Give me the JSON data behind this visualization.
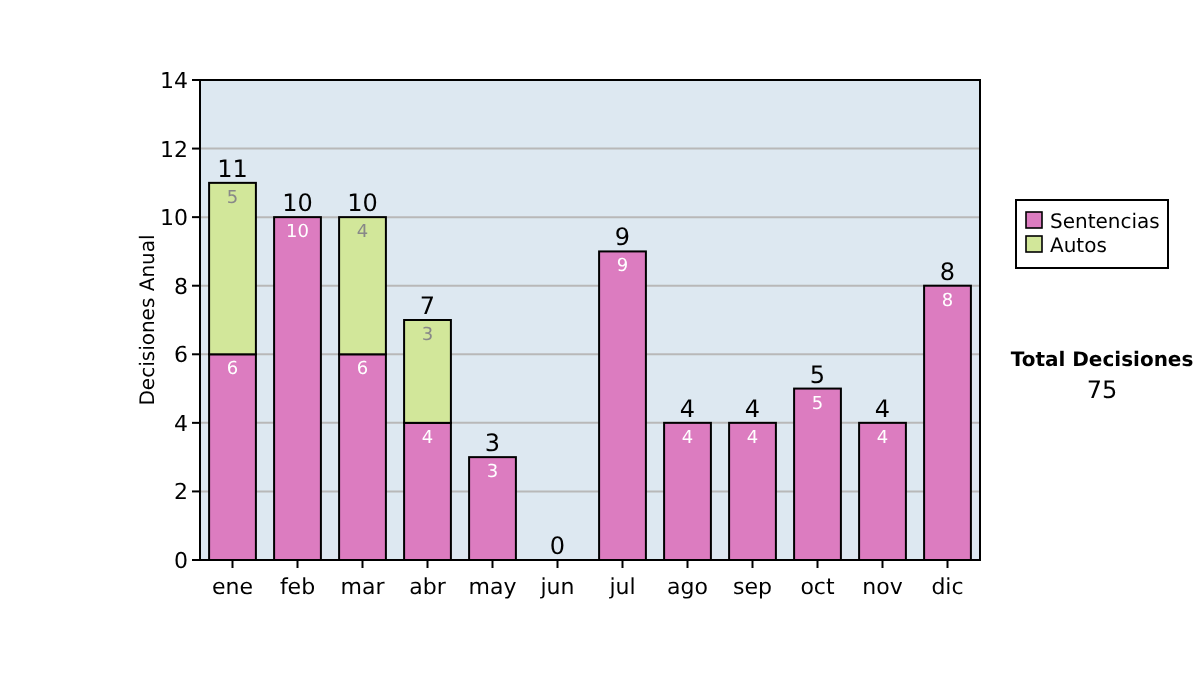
{
  "chart_data": {
    "type": "bar",
    "stacked": true,
    "ylabel": "Decisiones Anual",
    "categories": [
      "ene",
      "feb",
      "mar",
      "abr",
      "may",
      "jun",
      "jul",
      "ago",
      "sep",
      "oct",
      "nov",
      "dic"
    ],
    "series": [
      {
        "name": "Sentencias",
        "color": "#dc7cc0",
        "values": [
          6,
          10,
          6,
          4,
          3,
          0,
          9,
          4,
          4,
          5,
          4,
          8
        ],
        "value_labels": [
          "6",
          "10",
          "6",
          "4",
          "3",
          null,
          "9",
          "4",
          "4",
          "5",
          "4",
          "8"
        ]
      },
      {
        "name": "Autos",
        "color": "#d2e79a",
        "values": [
          5,
          0,
          4,
          3,
          0,
          0,
          0,
          0,
          0,
          0,
          0,
          0
        ],
        "value_labels": [
          "5",
          null,
          "4",
          "3",
          null,
          null,
          null,
          null,
          null,
          null,
          null,
          null
        ]
      }
    ],
    "totals": [
      "11",
      "10",
      "10",
      "7",
      "3",
      "0",
      "9",
      "4",
      "4",
      "5",
      "4",
      "8"
    ],
    "ylim": [
      0,
      14
    ],
    "yticks": [
      0,
      2,
      4,
      6,
      8,
      10,
      12,
      14
    ],
    "grid": "y",
    "legend": "right",
    "annotations": [
      "Total Decisiones",
      "75"
    ]
  }
}
